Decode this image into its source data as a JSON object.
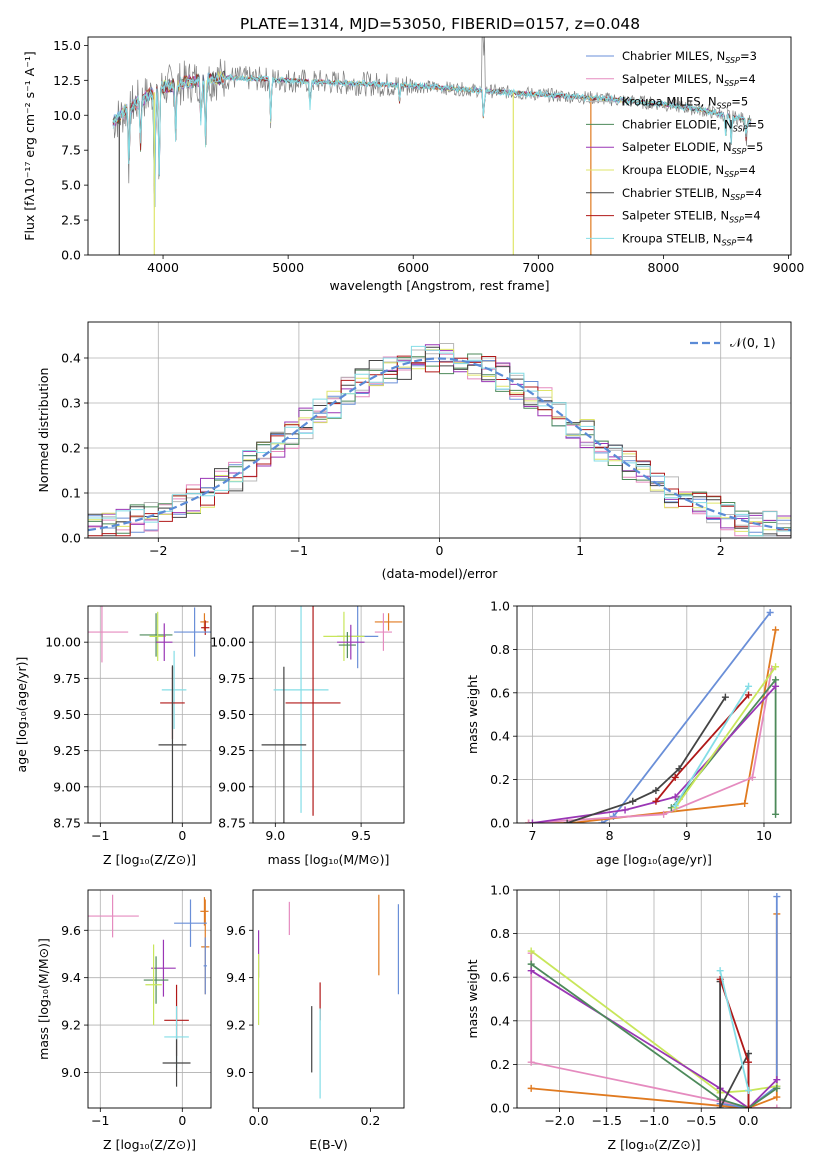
{
  "figure": {
    "title": "PLATE=1314, MJD=53050, FIBERID=0157, z=0.048"
  },
  "colors": {
    "chabrier_miles": "#6a8fd8",
    "salpeter_miles": "#e58bbf",
    "kroupa_miles": "#b8b8b8",
    "chabrier_elodie": "#4d8a5a",
    "salpeter_elodie": "#9a36b5",
    "kroupa_elodie": "#dfe56a",
    "chabrier_stelib": "#444444",
    "salpeter_stelib": "#b01818",
    "kroupa_stelib": "#84dde6",
    "orange": "#e07a20",
    "lime": "#c8e65a"
  },
  "chart_data": [
    {
      "id": "spectrum",
      "type": "line",
      "xlabel": "wavelength [Angstrom, rest frame]",
      "ylabel": "Flux [fλ10⁻¹⁷ erg cm⁻² s⁻¹ A⁻¹]",
      "xlim": [
        3400,
        9020
      ],
      "ylim": [
        0,
        15.6
      ],
      "xticks": [
        4000,
        5000,
        6000,
        7000,
        8000,
        9000
      ],
      "yticks": [
        0.0,
        2.5,
        5.0,
        7.5,
        10.0,
        12.5,
        15.0
      ],
      "legend_position": "top-right",
      "series": [
        {
          "name": "Chabrier MILES, N$_{SSP}$=3",
          "label_main": "Chabrier MILES, N",
          "label_sub": "SSP",
          "label_tail": "=3",
          "color": "#6a8fd8"
        },
        {
          "name": "Salpeter MILES, N$_{SSP}$=4",
          "label_main": "Salpeter MILES, N",
          "label_sub": "SSP",
          "label_tail": "=4",
          "color": "#e58bbf"
        },
        {
          "name": "Kroupa MILES, N$_{SSP}$=5",
          "label_main": "Kroupa MILES, N",
          "label_sub": "SSP",
          "label_tail": "=5",
          "color": "#b8b8b8"
        },
        {
          "name": "Chabrier ELODIE, N$_{SSP}$=5",
          "label_main": "Chabrier ELODIE, N",
          "label_sub": "SSP",
          "label_tail": "=5",
          "color": "#4d8a5a"
        },
        {
          "name": "Salpeter ELODIE, N$_{SSP}$=5",
          "label_main": "Salpeter ELODIE, N",
          "label_sub": "SSP",
          "label_tail": "=5",
          "color": "#9a36b5"
        },
        {
          "name": "Kroupa ELODIE, N$_{SSP}$=4",
          "label_main": "Kroupa ELODIE, N",
          "label_sub": "SSP",
          "label_tail": "=4",
          "color": "#dfe56a"
        },
        {
          "name": "Chabrier STELIB, N$_{SSP}$=4",
          "label_main": "Chabrier STELIB, N",
          "label_sub": "SSP",
          "label_tail": "=4",
          "color": "#444444"
        },
        {
          "name": "Salpeter STELIB, N$_{SSP}$=4",
          "label_main": "Salpeter STELIB, N",
          "label_sub": "SSP",
          "label_tail": "=4",
          "color": "#b01818"
        },
        {
          "name": "Kroupa STELIB, N$_{SSP}$=4",
          "label_main": "Kroupa STELIB, N",
          "label_sub": "SSP",
          "label_tail": "=4",
          "color": "#84dde6"
        }
      ],
      "continuum": [
        [
          3600,
          9.5
        ],
        [
          3700,
          10.3
        ],
        [
          3800,
          11.0
        ],
        [
          3900,
          11.5
        ],
        [
          4000,
          12.0
        ],
        [
          4200,
          12.4
        ],
        [
          4500,
          12.7
        ],
        [
          5000,
          12.5
        ],
        [
          5500,
          12.3
        ],
        [
          6000,
          12.1
        ],
        [
          6500,
          11.8
        ],
        [
          7000,
          11.5
        ],
        [
          7500,
          11.2
        ],
        [
          8000,
          10.8
        ],
        [
          8300,
          10.4
        ],
        [
          8600,
          9.8
        ],
        [
          8700,
          9.6
        ]
      ],
      "absorption_features": [
        [
          3727,
          6.5
        ],
        [
          3820,
          7.8
        ],
        [
          3933,
          3.5
        ],
        [
          3968,
          5.5
        ],
        [
          4101,
          8.5
        ],
        [
          4304,
          9.0
        ],
        [
          4340,
          8.0
        ],
        [
          4861,
          9.5
        ],
        [
          5175,
          10.5
        ],
        [
          5890,
          11.0
        ],
        [
          6563,
          9.5
        ],
        [
          8498,
          8.5
        ],
        [
          8542,
          8.0
        ],
        [
          8662,
          8.2
        ]
      ],
      "spikes_to_zero": [
        [
          3650,
          "#444444"
        ],
        [
          3930,
          "#dfe56a"
        ],
        [
          6800,
          "#dfe56a"
        ],
        [
          7420,
          "#e07a20"
        ]
      ]
    },
    {
      "id": "residuals",
      "type": "line",
      "xlabel": "(data-model)/error",
      "ylabel": "Normed distribution",
      "xlim": [
        -2.5,
        2.5
      ],
      "ylim": [
        0,
        0.48
      ],
      "xticks": [
        -2,
        -1,
        0,
        1,
        2
      ],
      "yticks": [
        0.0,
        0.1,
        0.2,
        0.3,
        0.4
      ],
      "grid": true,
      "legend_position": "top-right",
      "legend_label": "𝒩(0, 1)",
      "gaussian": {
        "mean": 0,
        "sigma": 1,
        "color": "#5b8bd6",
        "style": "dashed"
      },
      "histogram_bin_width": 0.1,
      "histogram_series_colors": [
        "#6a8fd8",
        "#e58bbf",
        "#b8b8b8",
        "#4d8a5a",
        "#9a36b5",
        "#dfe56a",
        "#444444",
        "#b01818",
        "#84dde6"
      ]
    },
    {
      "id": "age_vs_Z",
      "type": "scatter",
      "xlabel": "Z [log₁₀(Z/Z⊙)]",
      "ylabel": "age  [log₁₀(age/yr)]",
      "xlim": [
        -1.15,
        0.35
      ],
      "ylim": [
        8.75,
        10.25
      ],
      "xticks": [
        -1,
        0
      ],
      "yticks": [
        8.75,
        9.0,
        9.25,
        9.5,
        9.75,
        10.0
      ],
      "grid": true,
      "errorbars": [
        {
          "x": 0.27,
          "xerr": 0.05,
          "y": 10.14,
          "yerr": 0.06,
          "color": "#e07a20"
        },
        {
          "x": 0.28,
          "xerr": 0.05,
          "y": 10.1,
          "yerr": 0.05,
          "color": "#b01818"
        },
        {
          "x": 0.15,
          "xerr": 0.25,
          "y": 10.07,
          "yerr": 0.17,
          "color": "#6a8fd8"
        },
        {
          "x": -0.98,
          "xerr": 0.32,
          "y": 10.07,
          "yerr": 0.21,
          "color": "#e58bbf"
        },
        {
          "x": -0.32,
          "xerr": 0.2,
          "y": 10.05,
          "yerr": 0.15,
          "color": "#4d8a5a"
        },
        {
          "x": -0.3,
          "xerr": 0.1,
          "y": 10.04,
          "yerr": 0.17,
          "color": "#c8e65a"
        },
        {
          "x": -0.22,
          "xerr": 0.1,
          "y": 10.0,
          "yerr": 0.13,
          "color": "#9a36b5"
        },
        {
          "x": -0.1,
          "xerr": 0.15,
          "y": 9.67,
          "yerr": 0.27,
          "color": "#84dde6"
        },
        {
          "x": -0.12,
          "xerr": 0.15,
          "y": 9.58,
          "yerr": 0.25,
          "color": "#b01818"
        },
        {
          "x": -0.12,
          "xerr": 0.17,
          "y": 9.29,
          "yerr": 0.55,
          "color": "#444444"
        }
      ]
    },
    {
      "id": "age_vs_mass",
      "type": "scatter",
      "xlabel": "mass [log₁₀(M/M⊙)]",
      "ylabel": "",
      "xlim": [
        8.87,
        9.75
      ],
      "ylim": [
        8.75,
        10.25
      ],
      "xticks": [
        9.0,
        9.5
      ],
      "yticks": [
        8.75,
        9.0,
        9.25,
        9.5,
        9.75,
        10.0
      ],
      "grid": true,
      "errorbars": [
        {
          "x": 9.66,
          "xerr": 0.08,
          "y": 10.14,
          "yerr": 0.06,
          "color": "#e07a20"
        },
        {
          "x": 9.63,
          "xerr": 0.05,
          "y": 10.07,
          "yerr": 0.13,
          "color": "#e58bbf"
        },
        {
          "x": 9.48,
          "xerr": 0.12,
          "y": 10.04,
          "yerr": 0.22,
          "color": "#6a8fd8"
        },
        {
          "x": 9.4,
          "xerr": 0.12,
          "y": 10.04,
          "yerr": 0.17,
          "color": "#c8e65a"
        },
        {
          "x": 9.42,
          "xerr": 0.05,
          "y": 9.98,
          "yerr": 0.09,
          "color": "#4d8a5a"
        },
        {
          "x": 9.44,
          "xerr": 0.08,
          "y": 10.0,
          "yerr": 0.12,
          "color": "#9a36b5"
        },
        {
          "x": 9.15,
          "xerr": 0.16,
          "y": 9.67,
          "yerr": 0.85,
          "color": "#84dde6"
        },
        {
          "x": 9.22,
          "xerr": 0.16,
          "y": 9.58,
          "yerr": 0.78,
          "color": "#b01818"
        },
        {
          "x": 9.05,
          "xerr": 0.13,
          "y": 9.29,
          "yerr": 0.54,
          "color": "#444444"
        }
      ]
    },
    {
      "id": "weight_vs_age",
      "type": "line",
      "xlabel": "age  [log₁₀(age/yr)]",
      "ylabel": "mass weight",
      "xlim": [
        6.8,
        10.35
      ],
      "ylim": [
        0,
        1.0
      ],
      "xticks": [
        7,
        8,
        9,
        10
      ],
      "yticks": [
        0.0,
        0.2,
        0.4,
        0.6,
        0.8,
        1.0
      ],
      "grid": true,
      "series": [
        {
          "color": "#6a8fd8",
          "points": [
            [
              7.9,
              0.0
            ],
            [
              8.05,
              0.03
            ],
            [
              10.08,
              0.97
            ]
          ]
        },
        {
          "color": "#e07a20",
          "points": [
            [
              6.95,
              0.0
            ],
            [
              7.5,
              0.0
            ],
            [
              9.75,
              0.09
            ],
            [
              10.15,
              0.89
            ]
          ]
        },
        {
          "color": "#e58bbf",
          "points": [
            [
              6.95,
              0.0
            ],
            [
              8.7,
              0.04
            ],
            [
              9.85,
              0.21
            ],
            [
              10.1,
              0.71
            ]
          ]
        },
        {
          "color": "#4d8a5a",
          "points": [
            [
              8.8,
              0.07
            ],
            [
              8.9,
              0.11
            ],
            [
              10.15,
              0.66
            ],
            [
              10.15,
              0.04
            ]
          ]
        },
        {
          "color": "#9a36b5",
          "points": [
            [
              7.0,
              0.0
            ],
            [
              8.2,
              0.06
            ],
            [
              8.85,
              0.12
            ],
            [
              10.15,
              0.63
            ]
          ]
        },
        {
          "color": "#c8e65a",
          "points": [
            [
              8.85,
              0.07
            ],
            [
              10.15,
              0.72
            ]
          ]
        },
        {
          "color": "#444444",
          "points": [
            [
              7.45,
              0.0
            ],
            [
              8.3,
              0.1
            ],
            [
              8.6,
              0.15
            ],
            [
              8.9,
              0.25
            ],
            [
              9.5,
              0.58
            ]
          ]
        },
        {
          "color": "#b01818",
          "points": [
            [
              8.6,
              0.1
            ],
            [
              8.85,
              0.21
            ],
            [
              9.8,
              0.59
            ]
          ]
        },
        {
          "color": "#84dde6",
          "points": [
            [
              8.85,
              0.08
            ],
            [
              9.8,
              0.63
            ]
          ]
        }
      ]
    },
    {
      "id": "mass_vs_Z",
      "type": "scatter",
      "xlabel": "Z [log₁₀(Z/Z⊙)]",
      "ylabel": "mass [log₁₀(M/M⊙)]",
      "xlim": [
        -1.15,
        0.35
      ],
      "ylim": [
        8.85,
        9.77
      ],
      "xticks": [
        -1,
        0
      ],
      "yticks": [
        9.0,
        9.2,
        9.4,
        9.6
      ],
      "grid": true,
      "errorbars": [
        {
          "x": 0.27,
          "xerr": 0.05,
          "y": 9.68,
          "yerr": 0.06,
          "color": "#e07a20"
        },
        {
          "x": 0.28,
          "xerr": 0.05,
          "y": 9.53,
          "yerr": 0.2,
          "color": "#e07a20"
        },
        {
          "x": 0.1,
          "xerr": 0.2,
          "y": 9.63,
          "yerr": 0.1,
          "color": "#6a8fd8"
        },
        {
          "x": 0.28,
          "xerr": 0.02,
          "y": 9.45,
          "yerr": 0.12,
          "color": "#6a8fd8"
        },
        {
          "x": -0.85,
          "xerr": 0.32,
          "y": 9.66,
          "yerr": 0.09,
          "color": "#e58bbf"
        },
        {
          "x": -0.23,
          "xerr": 0.15,
          "y": 9.44,
          "yerr": 0.12,
          "color": "#9a36b5"
        },
        {
          "x": -0.32,
          "xerr": 0.15,
          "y": 9.39,
          "yerr": 0.1,
          "color": "#4d8a5a"
        },
        {
          "x": -0.35,
          "xerr": 0.1,
          "y": 9.37,
          "yerr": 0.17,
          "color": "#c8e65a"
        },
        {
          "x": -0.07,
          "xerr": 0.15,
          "y": 9.22,
          "yerr": 0.15,
          "color": "#b01818"
        },
        {
          "x": -0.07,
          "xerr": 0.15,
          "y": 9.15,
          "yerr": 0.13,
          "color": "#84dde6"
        },
        {
          "x": -0.07,
          "xerr": 0.17,
          "y": 9.04,
          "yerr": 0.1,
          "color": "#444444"
        }
      ]
    },
    {
      "id": "mass_vs_ebv",
      "type": "scatter",
      "xlabel": "E(B-V)",
      "ylabel": "",
      "xlim": [
        -0.01,
        0.26
      ],
      "ylim": [
        8.85,
        9.77
      ],
      "xticks": [
        0.0,
        0.2
      ],
      "yticks": [
        9.0,
        9.2,
        9.4,
        9.6
      ],
      "grid": false,
      "errorbars": [
        {
          "x": 0.0,
          "xerr": 0.0,
          "y": 9.5,
          "yerr": 0.1,
          "color": "#9a36b5"
        },
        {
          "x": 0.0,
          "xerr": 0.0,
          "y": 9.35,
          "yerr": 0.15,
          "color": "#c8e65a"
        },
        {
          "x": 0.055,
          "xerr": 0.0,
          "y": 9.65,
          "yerr": 0.07,
          "color": "#e58bbf"
        },
        {
          "x": 0.095,
          "xerr": 0.0,
          "y": 9.14,
          "yerr": 0.14,
          "color": "#444444"
        },
        {
          "x": 0.11,
          "xerr": 0.0,
          "y": 9.3,
          "yerr": 0.08,
          "color": "#b01818"
        },
        {
          "x": 0.11,
          "xerr": 0.0,
          "y": 9.08,
          "yerr": 0.19,
          "color": "#84dde6"
        },
        {
          "x": 0.215,
          "xerr": 0.0,
          "y": 9.58,
          "yerr": 0.17,
          "color": "#e07a20"
        },
        {
          "x": 0.25,
          "xerr": 0.0,
          "y": 9.52,
          "yerr": 0.19,
          "color": "#6a8fd8"
        }
      ]
    },
    {
      "id": "weight_vs_Z",
      "type": "line",
      "xlabel": "Z [log₁₀(Z/Z⊙)]",
      "ylabel": "mass weight",
      "xlim": [
        -2.45,
        0.45
      ],
      "ylim": [
        0,
        1.0
      ],
      "xticks": [
        -2.0,
        -1.5,
        -1.0,
        -0.5,
        0.0
      ],
      "xtick_labels": [
        "−2.0",
        "−1.5",
        "−1.0",
        "−0.5",
        "0.0"
      ],
      "yticks": [
        0.0,
        0.2,
        0.4,
        0.6,
        0.8,
        1.0
      ],
      "grid": true,
      "series": [
        {
          "color": "#e07a20",
          "points": [
            [
              -2.3,
              0.09
            ],
            [
              -0.3,
              0.01
            ],
            [
              0.0,
              0.0
            ],
            [
              0.3,
              0.05
            ],
            [
              0.3,
              0.89
            ]
          ]
        },
        {
          "color": "#e58bbf",
          "points": [
            [
              -2.3,
              0.71
            ],
            [
              -2.3,
              0.21
            ],
            [
              -0.3,
              0.03
            ],
            [
              0.0,
              0.0
            ],
            [
              0.3,
              0.0
            ]
          ]
        },
        {
          "color": "#6a8fd8",
          "points": [
            [
              -0.3,
              0.02
            ],
            [
              0.0,
              0.0
            ],
            [
              0.3,
              0.1
            ],
            [
              0.3,
              0.97
            ]
          ]
        },
        {
          "color": "#c8e65a",
          "points": [
            [
              -2.3,
              0.72
            ],
            [
              -0.3,
              0.07
            ],
            [
              0.0,
              0.08
            ],
            [
              0.3,
              0.1
            ]
          ]
        },
        {
          "color": "#9a36b5",
          "points": [
            [
              -2.3,
              0.63
            ],
            [
              -0.3,
              0.09
            ],
            [
              0.0,
              0.0
            ],
            [
              0.3,
              0.13
            ]
          ]
        },
        {
          "color": "#4d8a5a",
          "points": [
            [
              -2.3,
              0.66
            ],
            [
              -0.3,
              0.04
            ],
            [
              0.0,
              0.0
            ],
            [
              0.3,
              0.09
            ]
          ]
        },
        {
          "color": "#444444",
          "points": [
            [
              -0.3,
              0.58
            ],
            [
              -0.3,
              0.0
            ],
            [
              0.0,
              0.25
            ],
            [
              0.0,
              0.0
            ]
          ]
        },
        {
          "color": "#b01818",
          "points": [
            [
              -0.3,
              0.59
            ],
            [
              0.0,
              0.21
            ],
            [
              0.0,
              0.0
            ]
          ]
        },
        {
          "color": "#84dde6",
          "points": [
            [
              -0.3,
              0.63
            ],
            [
              0.0,
              0.08
            ]
          ]
        }
      ]
    }
  ]
}
